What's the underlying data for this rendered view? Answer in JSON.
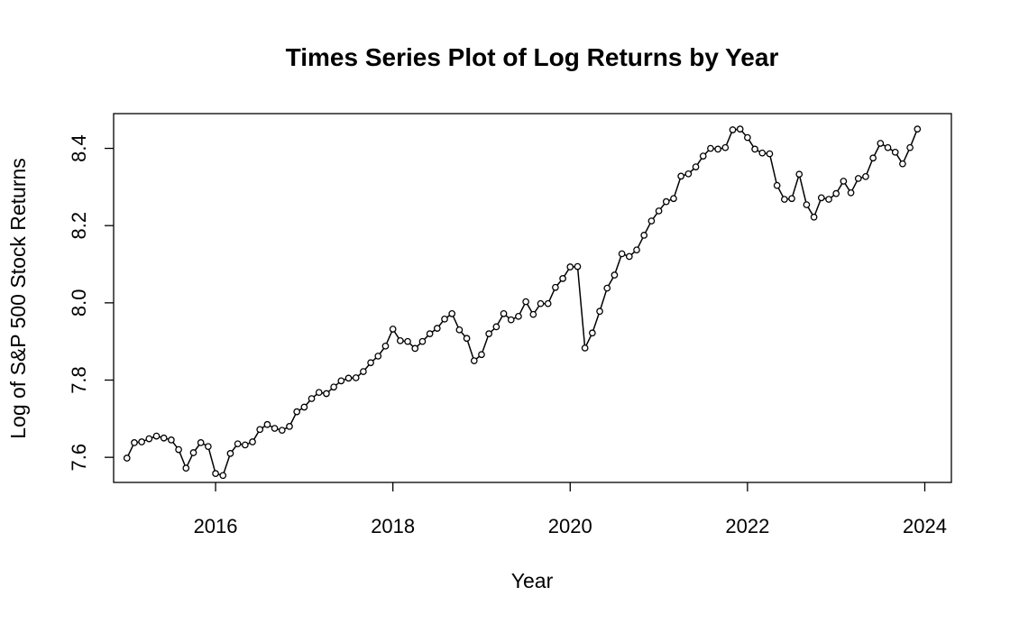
{
  "chart_data": {
    "type": "line",
    "title": "Times Series Plot of Log Returns by Year",
    "xlabel": "Year",
    "ylabel": "Log of S&P 500 Stock Returns",
    "xlim": [
      2014.85,
      2024.3
    ],
    "ylim": [
      7.535,
      8.49
    ],
    "x_ticks": [
      2016,
      2018,
      2020,
      2022,
      2024
    ],
    "x_tick_labels": [
      "2016",
      "2018",
      "2020",
      "2022",
      "2024"
    ],
    "y_ticks": [
      7.6,
      7.8,
      8.0,
      8.2,
      8.4
    ],
    "y_tick_labels": [
      "7.6",
      "7.8",
      "8.0",
      "8.2",
      "8.4"
    ],
    "grid": false,
    "markers": "open-circle",
    "line_color": "#000000",
    "x_start": 2015.0,
    "x_step": 0.08333333,
    "values": [
      7.598,
      7.638,
      7.64,
      7.648,
      7.655,
      7.65,
      7.645,
      7.62,
      7.572,
      7.612,
      7.638,
      7.628,
      7.558,
      7.553,
      7.61,
      7.635,
      7.632,
      7.64,
      7.672,
      7.685,
      7.675,
      7.67,
      7.68,
      7.718,
      7.73,
      7.752,
      7.768,
      7.765,
      7.782,
      7.798,
      7.805,
      7.806,
      7.822,
      7.845,
      7.862,
      7.888,
      7.932,
      7.902,
      7.9,
      7.882,
      7.9,
      7.92,
      7.934,
      7.958,
      7.972,
      7.93,
      7.908,
      7.85,
      7.866,
      7.92,
      7.938,
      7.972,
      7.956,
      7.965,
      8.003,
      7.97,
      7.998,
      7.998,
      8.04,
      8.063,
      8.093,
      8.094,
      7.883,
      7.922,
      7.978,
      8.038,
      8.072,
      8.127,
      8.12,
      8.137,
      8.175,
      8.212,
      8.238,
      8.262,
      8.27,
      8.328,
      8.334,
      8.352,
      8.38,
      8.4,
      8.398,
      8.402,
      8.448,
      8.45,
      8.428,
      8.398,
      8.388,
      8.386,
      8.304,
      8.268,
      8.27,
      8.333,
      8.254,
      8.222,
      8.272,
      8.268,
      8.283,
      8.315,
      8.285,
      8.322,
      8.327,
      8.375,
      8.413,
      8.402,
      8.39,
      8.36,
      8.402,
      8.45
    ]
  }
}
